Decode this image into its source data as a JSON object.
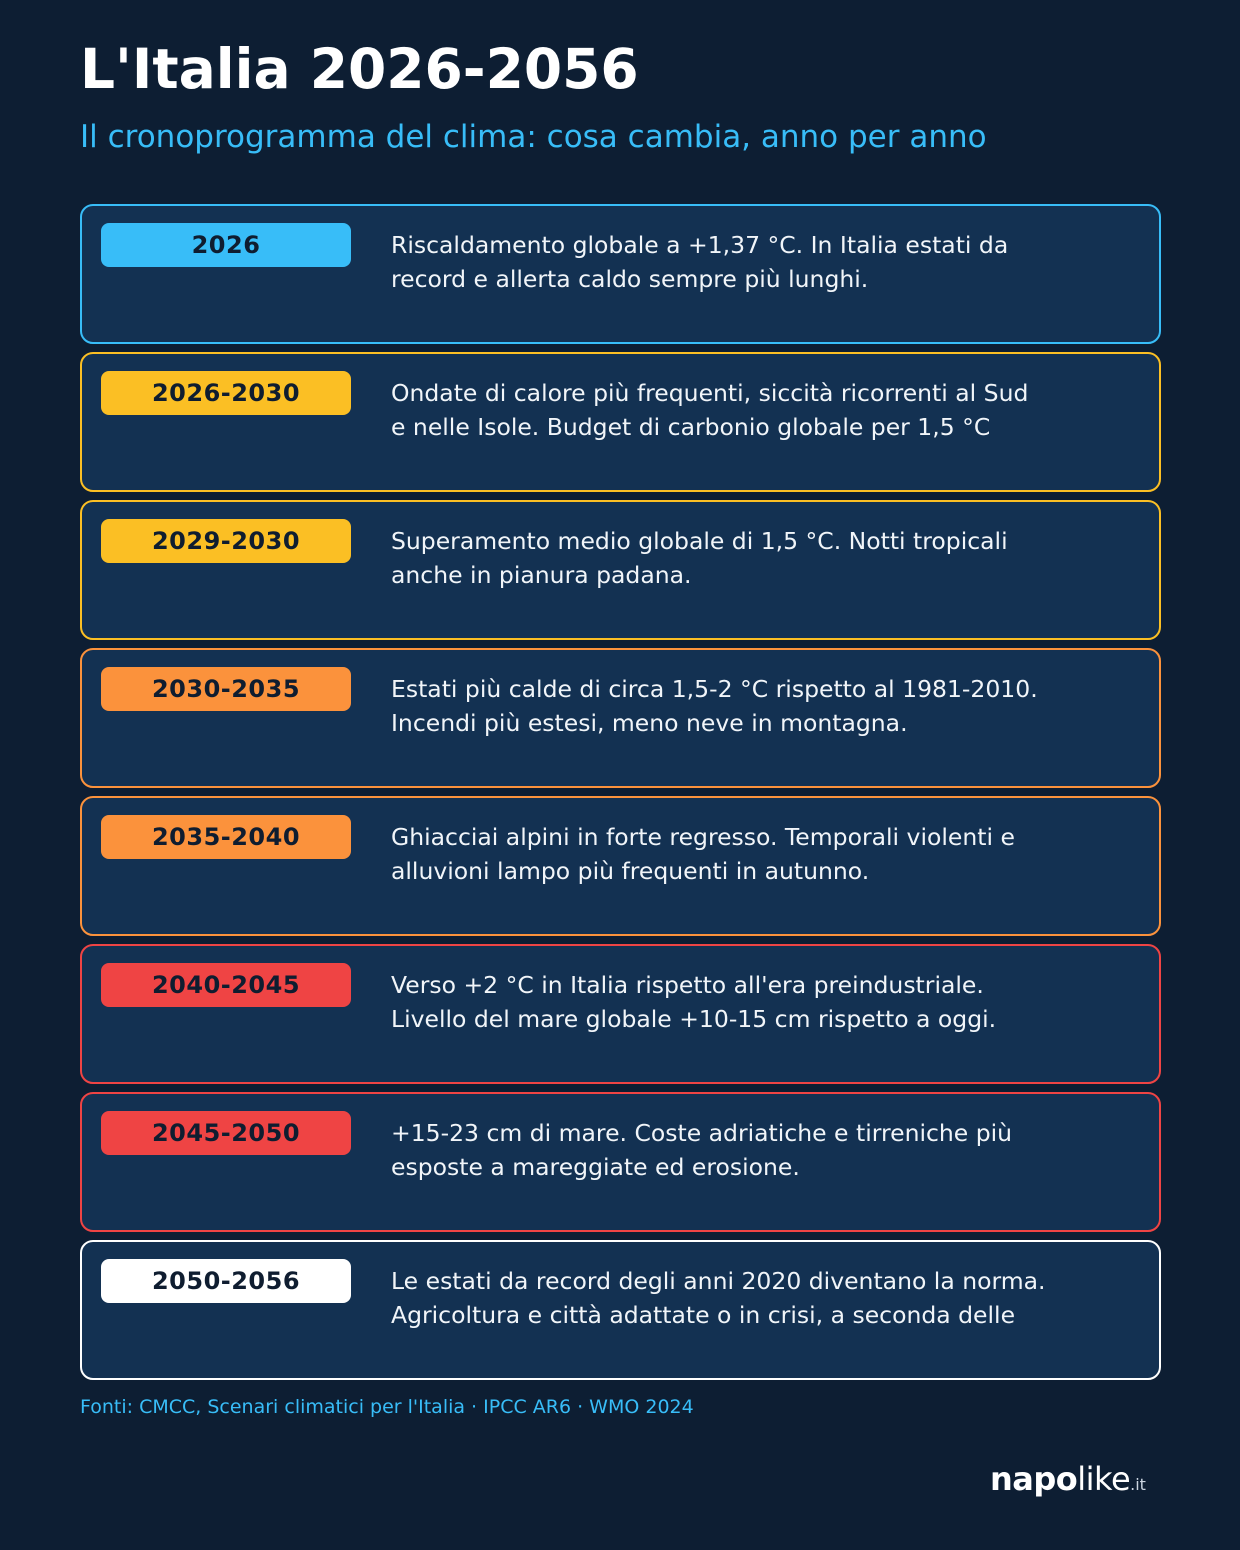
{
  "header": {
    "title": "L'Italia 2026-2056",
    "subtitle": "Il cronoprogramma del clima: cosa cambia, anno per anno"
  },
  "timeline": [
    {
      "period": "2026",
      "color": "#38bdf8",
      "line1": "Riscaldamento globale a +1,37 °C. In Italia estati da",
      "line2": "record e allerta caldo sempre più lunghi."
    },
    {
      "period": "2026-2030",
      "color": "#fbbf24",
      "line1": "Ondate di calore più frequenti, siccità ricorrenti al Sud",
      "line2": "e nelle Isole. Budget di carbonio globale per 1,5 °C"
    },
    {
      "period": "2029-2030",
      "color": "#fbbf24",
      "line1": "Superamento medio globale di 1,5 °C. Notti tropicali",
      "line2": "anche in pianura padana."
    },
    {
      "period": "2030-2035",
      "color": "#fb923c",
      "line1": "Estati più calde di circa 1,5-2 °C rispetto al 1981-2010.",
      "line2": "Incendi più estesi, meno neve in montagna."
    },
    {
      "period": "2035-2040",
      "color": "#fb923c",
      "line1": "Ghiacciai alpini in forte regresso. Temporali violenti e",
      "line2": "alluvioni lampo più frequenti in autunno."
    },
    {
      "period": "2040-2045",
      "color": "#ef4444",
      "line1": "Verso +2 °C in Italia rispetto all'era preindustriale.",
      "line2": "Livello del mare globale +10-15 cm rispetto a oggi."
    },
    {
      "period": "2045-2050",
      "color": "#ef4444",
      "line1": "+15-23 cm di mare. Coste adriatiche e tirreniche più",
      "line2": "esposte a mareggiate ed erosione."
    },
    {
      "period": "2050-2056",
      "color": "#ffffff",
      "line1": "Le estati da record degli anni 2020 diventano la norma.",
      "line2": "Agricoltura e città adattate o in crisi, a seconda delle"
    }
  ],
  "footer": {
    "sources": "Fonti: CMCC, Scenari climatici per l'Italia · IPCC AR6 · WMO 2024",
    "logo_bold": "napo",
    "logo_light": "like",
    "logo_tld": ".it"
  },
  "colors": {
    "background": "#0d1e33",
    "card": "#133152",
    "accent": "#38bdf8"
  }
}
